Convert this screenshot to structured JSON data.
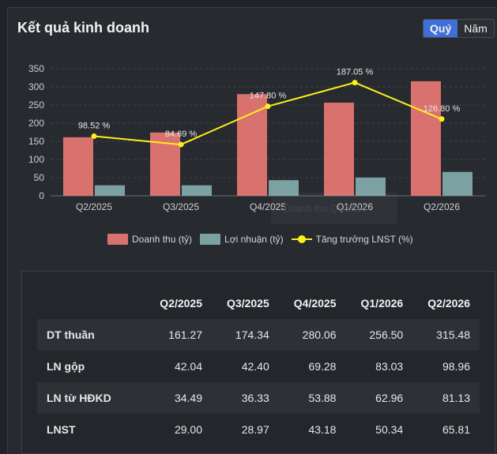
{
  "title": "Kết quả kinh doanh",
  "toggle": {
    "quarter": "Quý",
    "year": "Năm"
  },
  "chart_data": {
    "type": "bar",
    "categories": [
      "Q2/2025",
      "Q3/2025",
      "Q4/2025",
      "Q1/2026",
      "Q2/2026"
    ],
    "series": [
      {
        "name": "Doanh thu (tỷ)",
        "type": "bar",
        "color": "#d9716e",
        "values": [
          161.27,
          174.34,
          280.06,
          256.5,
          315.48
        ]
      },
      {
        "name": "Lợi nhuận (tỷ)",
        "type": "bar",
        "color": "#7ca1a3",
        "values": [
          29.0,
          28.97,
          43.18,
          50.34,
          65.81
        ]
      },
      {
        "name": "Tăng trưởng LNST (%)",
        "type": "line",
        "color": "#ffee20",
        "values": [
          98.52,
          84.69,
          147.8,
          187.05,
          126.8
        ],
        "labels": [
          "98.52 %",
          "84.69 %",
          "147.80 %",
          "187.05 %",
          "126.80 %"
        ]
      }
    ],
    "yticks": [
      "0",
      "50",
      "100",
      "150",
      "200",
      "250",
      "300",
      "350"
    ],
    "ylim": [
      0,
      350
    ],
    "line_ylim": [
      0,
      210
    ],
    "grid": true,
    "legend": "bottom"
  },
  "tooltip_text": "Doanh thu Q1/2026",
  "table": {
    "headers": [
      "",
      "Q2/2025",
      "Q3/2025",
      "Q4/2025",
      "Q1/2026",
      "Q2/2026"
    ],
    "rows": [
      {
        "label": "DT thuần",
        "values": [
          "161.27",
          "174.34",
          "280.06",
          "256.50",
          "315.48"
        ]
      },
      {
        "label": "LN gộp",
        "values": [
          "42.04",
          "42.40",
          "69.28",
          "83.03",
          "98.96"
        ]
      },
      {
        "label": "LN từ HĐKD",
        "values": [
          "34.49",
          "36.33",
          "53.88",
          "62.96",
          "81.13"
        ]
      },
      {
        "label": "LNST",
        "values": [
          "29.00",
          "28.97",
          "43.18",
          "50.34",
          "65.81"
        ]
      }
    ]
  }
}
